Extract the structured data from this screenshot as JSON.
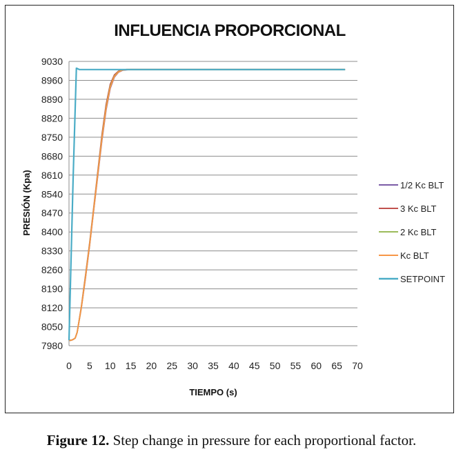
{
  "chart_data": {
    "type": "line",
    "title": "INFLUENCIA PROPORCIONAL",
    "xlabel": "TIEMPO (s)",
    "ylabel": "PRESIÓN (Kpa)",
    "xlim": [
      0,
      70
    ],
    "ylim": [
      7980,
      9030
    ],
    "xticks": [
      0,
      5,
      10,
      15,
      20,
      25,
      30,
      35,
      40,
      45,
      50,
      55,
      60,
      65,
      70
    ],
    "yticks": [
      7980,
      8050,
      8120,
      8190,
      8260,
      8330,
      8400,
      8470,
      8540,
      8610,
      8680,
      8750,
      8820,
      8890,
      8960,
      9030
    ],
    "grid": "horizontal",
    "legend_position": "right",
    "series": [
      {
        "name": "1/2 Kc BLT",
        "color": "#7a5ba6",
        "x": [
          0,
          0.5,
          1,
          1.5,
          2,
          3,
          4,
          5,
          6,
          7,
          8,
          9,
          10,
          11,
          12,
          13,
          14,
          15,
          20,
          30,
          40,
          50,
          60,
          67
        ],
        "y": [
          8000,
          8000,
          8003,
          8008,
          8030,
          8120,
          8230,
          8350,
          8480,
          8610,
          8740,
          8850,
          8930,
          8972,
          8990,
          8997,
          8999,
          9000,
          9000,
          9000,
          9000,
          9000,
          9000,
          9000
        ]
      },
      {
        "name": "3 Kc BLT",
        "color": "#c0504d",
        "x": [
          0,
          0.5,
          1,
          1.5,
          2,
          3,
          4,
          5,
          6,
          7,
          8,
          9,
          10,
          11,
          12,
          13,
          14,
          15,
          20,
          30,
          40,
          50,
          60,
          67
        ],
        "y": [
          8000,
          8000,
          8003,
          8008,
          8030,
          8125,
          8240,
          8360,
          8490,
          8625,
          8760,
          8870,
          8945,
          8980,
          8994,
          8999,
          9000,
          9000,
          9000,
          9000,
          9000,
          9000,
          9000,
          9000
        ]
      },
      {
        "name": "2 Kc BLT",
        "color": "#9bbb59",
        "x": [
          0,
          0.5,
          1,
          1.5,
          2,
          3,
          4,
          5,
          6,
          7,
          8,
          9,
          10,
          11,
          12,
          13,
          14,
          15,
          20,
          30,
          40,
          50,
          60,
          67
        ],
        "y": [
          8000,
          8000,
          8003,
          8008,
          8030,
          8122,
          8235,
          8355,
          8485,
          8618,
          8750,
          8860,
          8938,
          8976,
          8992,
          8998,
          9000,
          9000,
          9000,
          9000,
          9000,
          9000,
          9000,
          9000
        ]
      },
      {
        "name": "Kc BLT",
        "color": "#f79646",
        "x": [
          0,
          0.5,
          1,
          1.5,
          2,
          3,
          4,
          5,
          6,
          7,
          8,
          9,
          10,
          11,
          12,
          13,
          14,
          15,
          20,
          30,
          40,
          50,
          60,
          67
        ],
        "y": [
          8000,
          8000,
          8003,
          8008,
          8030,
          8121,
          8232,
          8352,
          8482,
          8614,
          8745,
          8855,
          8934,
          8974,
          8991,
          8998,
          9000,
          9000,
          9000,
          9000,
          9000,
          9000,
          9000,
          9000
        ]
      },
      {
        "name": "SETPOINT",
        "color": "#4aacc6",
        "x": [
          0,
          1,
          1.8,
          2.5,
          3,
          5,
          10,
          20,
          30,
          40,
          50,
          60,
          67
        ],
        "y": [
          8000,
          8600,
          9005,
          9000,
          9000,
          9000,
          9000,
          9000,
          9000,
          9000,
          9000,
          9000,
          9000
        ]
      }
    ]
  },
  "caption": {
    "label": "Figure 12.",
    "text": " Step change in pressure for each proportional factor."
  }
}
